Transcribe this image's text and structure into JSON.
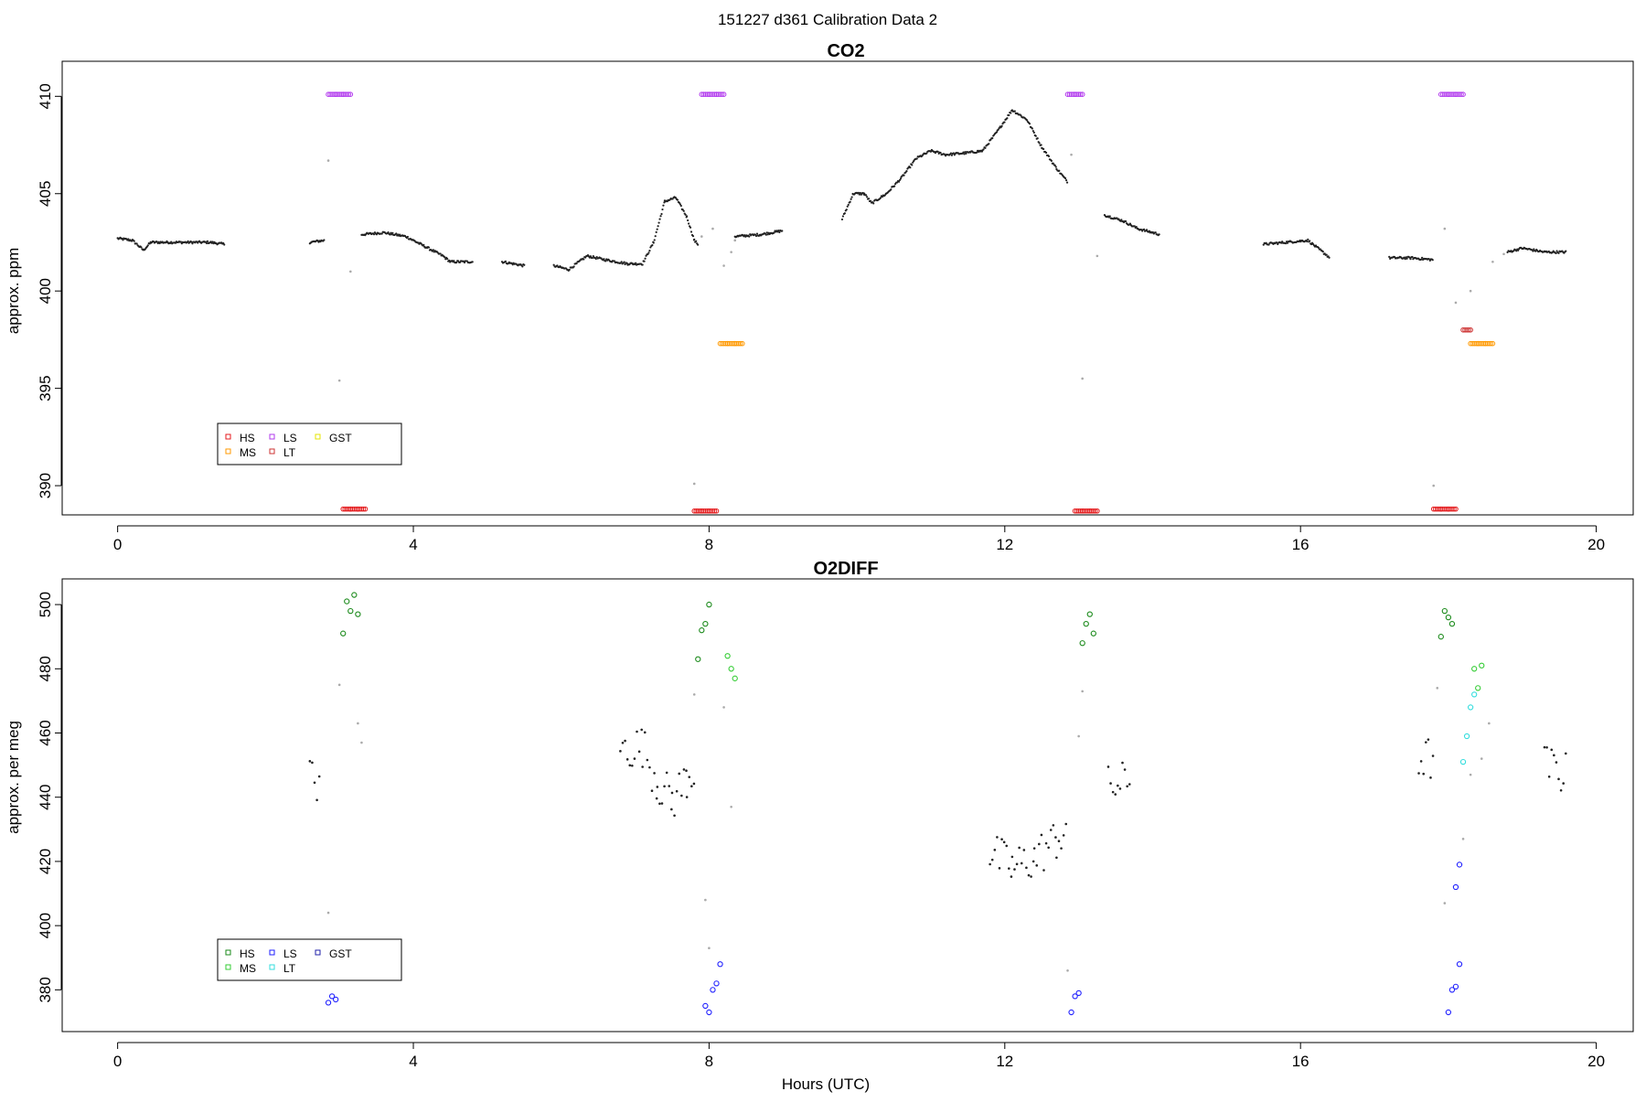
{
  "page": {
    "title": "151227   d361   Calibration Data 2"
  },
  "chart_data": [
    {
      "type": "scatter",
      "title": "CO2",
      "xlabel": "",
      "ylabel": "approx. ppm",
      "xlim": [
        -0.75,
        20.5
      ],
      "ylim": [
        388.5,
        411.8
      ],
      "x_ticks": [
        0,
        4,
        8,
        12,
        16,
        20
      ],
      "y_ticks": [
        390,
        395,
        400,
        405,
        410
      ],
      "legend": {
        "placement": "bottom-left",
        "entries": [
          {
            "label": "HS",
            "color": "#e41a1c"
          },
          {
            "label": "MS",
            "color": "#ff9900"
          },
          {
            "label": "LS",
            "color": "#b23aee"
          },
          {
            "label": "LT",
            "color": "#cd3333"
          },
          {
            "label": "GST",
            "color": "#e6e600"
          }
        ]
      },
      "ambient_trace": {
        "name": "",
        "color": "#222222",
        "points": [
          [
            0.0,
            402.7
          ],
          [
            0.2,
            402.6
          ],
          [
            0.35,
            402.1
          ],
          [
            0.45,
            402.5
          ],
          [
            0.7,
            402.5
          ],
          [
            1.0,
            402.5
          ],
          [
            1.25,
            402.5
          ],
          [
            1.45,
            402.4
          ],
          [
            1.8,
            402.4
          ],
          [
            2.2,
            402.4
          ],
          [
            2.6,
            402.5
          ],
          [
            2.8,
            402.6
          ],
          [
            3.3,
            402.9
          ],
          [
            3.6,
            403.0
          ],
          [
            3.9,
            402.8
          ],
          [
            4.15,
            402.3
          ],
          [
            4.4,
            401.8
          ],
          [
            4.5,
            401.5
          ],
          [
            4.8,
            401.5
          ],
          [
            5.2,
            401.5
          ],
          [
            5.5,
            401.3
          ],
          [
            5.9,
            401.3
          ],
          [
            6.1,
            401.1
          ],
          [
            6.35,
            401.8
          ],
          [
            6.6,
            401.6
          ],
          [
            6.9,
            401.4
          ],
          [
            7.1,
            401.4
          ],
          [
            7.25,
            402.5
          ],
          [
            7.4,
            404.6
          ],
          [
            7.55,
            404.8
          ],
          [
            7.7,
            403.8
          ],
          [
            7.8,
            402.6
          ],
          [
            7.85,
            402.4
          ],
          [
            8.35,
            402.8
          ],
          [
            8.7,
            402.9
          ],
          [
            9.0,
            403.1
          ],
          [
            9.4,
            403.3
          ],
          [
            9.8,
            403.7
          ],
          [
            9.95,
            405.0
          ],
          [
            10.1,
            405.0
          ],
          [
            10.2,
            404.5
          ],
          [
            10.4,
            405.0
          ],
          [
            10.6,
            405.8
          ],
          [
            10.8,
            406.8
          ],
          [
            11.0,
            407.2
          ],
          [
            11.2,
            407.0
          ],
          [
            11.5,
            407.1
          ],
          [
            11.7,
            407.2
          ],
          [
            11.9,
            408.2
          ],
          [
            12.1,
            409.3
          ],
          [
            12.3,
            408.8
          ],
          [
            12.5,
            407.4
          ],
          [
            12.7,
            406.3
          ],
          [
            12.85,
            405.6
          ],
          [
            13.35,
            403.9
          ],
          [
            13.6,
            403.6
          ],
          [
            13.8,
            403.2
          ],
          [
            14.1,
            402.9
          ],
          [
            14.5,
            402.7
          ],
          [
            15.0,
            402.5
          ],
          [
            15.5,
            402.4
          ],
          [
            15.8,
            402.5
          ],
          [
            16.1,
            402.6
          ],
          [
            16.4,
            401.7
          ],
          [
            16.8,
            401.7
          ],
          [
            17.2,
            401.7
          ],
          [
            17.5,
            401.7
          ],
          [
            17.8,
            401.6
          ],
          [
            18.8,
            402.0
          ],
          [
            19.0,
            402.2
          ],
          [
            19.3,
            402.0
          ],
          [
            19.6,
            402.0
          ]
        ]
      },
      "calibration_series": [
        {
          "name": "LS",
          "color": "#b23aee",
          "points": [
            [
              2.9,
              410.1
            ],
            [
              3.0,
              410.1
            ],
            [
              3.1,
              410.1
            ],
            [
              7.95,
              410.1
            ],
            [
              8.05,
              410.1
            ],
            [
              8.15,
              410.1
            ],
            [
              12.9,
              410.1
            ],
            [
              13.0,
              410.1
            ],
            [
              17.95,
              410.1
            ],
            [
              18.05,
              410.1
            ],
            [
              18.15,
              410.1
            ]
          ]
        },
        {
          "name": "HS",
          "color": "#e41a1c",
          "points": [
            [
              3.1,
              388.8
            ],
            [
              3.2,
              388.8
            ],
            [
              3.3,
              388.8
            ],
            [
              7.85,
              388.7
            ],
            [
              7.95,
              388.7
            ],
            [
              8.05,
              388.7
            ],
            [
              13.0,
              388.7
            ],
            [
              13.1,
              388.7
            ],
            [
              13.2,
              388.7
            ],
            [
              17.85,
              388.8
            ],
            [
              17.95,
              388.8
            ],
            [
              18.05,
              388.8
            ]
          ]
        },
        {
          "name": "MS",
          "color": "#ff9900",
          "points": [
            [
              8.2,
              397.3
            ],
            [
              8.3,
              397.3
            ],
            [
              8.4,
              397.3
            ],
            [
              18.35,
              397.3
            ],
            [
              18.45,
              397.3
            ],
            [
              18.55,
              397.3
            ]
          ]
        },
        {
          "name": "LT",
          "color": "#cd3333",
          "points": [
            [
              18.25,
              398.0
            ]
          ]
        }
      ],
      "transition_points": [
        [
          2.85,
          406.7
        ],
        [
          3.0,
          395.4
        ],
        [
          3.15,
          401.0
        ],
        [
          7.8,
          390.1
        ],
        [
          7.9,
          402.8
        ],
        [
          8.05,
          403.2
        ],
        [
          8.2,
          401.3
        ],
        [
          8.3,
          402.0
        ],
        [
          8.35,
          402.6
        ],
        [
          12.9,
          407.0
        ],
        [
          13.05,
          395.5
        ],
        [
          13.25,
          401.8
        ],
        [
          17.8,
          390.0
        ],
        [
          17.95,
          403.2
        ],
        [
          18.1,
          399.4
        ],
        [
          18.3,
          400.0
        ],
        [
          18.6,
          401.5
        ],
        [
          18.75,
          401.9
        ]
      ]
    },
    {
      "type": "scatter",
      "title": "O2DIFF",
      "xlabel": "Hours (UTC)",
      "ylabel": "approx. per meg",
      "xlim": [
        -0.75,
        20.5
      ],
      "ylim": [
        367,
        508
      ],
      "x_ticks": [
        0,
        4,
        8,
        12,
        16,
        20
      ],
      "y_ticks": [
        380,
        400,
        420,
        440,
        460,
        480,
        500
      ],
      "legend": {
        "placement": "bottom-left",
        "entries": [
          {
            "label": "HS",
            "color": "#1a8a1a"
          },
          {
            "label": "MS",
            "color": "#33cc33"
          },
          {
            "label": "LS",
            "color": "#1f1fff"
          },
          {
            "label": "LT",
            "color": "#33dddd"
          },
          {
            "label": "GST",
            "color": "#2222aa"
          }
        ]
      },
      "ambient_trace": {
        "name": "",
        "color": "#222222",
        "spread": 5,
        "points": [
          [
            0.0,
            449
          ],
          [
            0.5,
            448
          ],
          [
            1.0,
            449
          ],
          [
            1.4,
            451
          ],
          [
            1.8,
            450
          ],
          [
            2.2,
            453
          ],
          [
            2.6,
            450
          ],
          [
            2.75,
            440
          ],
          [
            3.4,
            448
          ],
          [
            3.8,
            448
          ],
          [
            4.2,
            450
          ],
          [
            4.8,
            454
          ],
          [
            5.3,
            456
          ],
          [
            5.8,
            454
          ],
          [
            6.3,
            453
          ],
          [
            6.8,
            455
          ],
          [
            7.1,
            456
          ],
          [
            7.3,
            445
          ],
          [
            7.5,
            439
          ],
          [
            7.7,
            446
          ],
          [
            7.8,
            448
          ],
          [
            8.5,
            444
          ],
          [
            8.9,
            444
          ],
          [
            9.4,
            446
          ],
          [
            9.8,
            440
          ],
          [
            10.2,
            437
          ],
          [
            10.6,
            433
          ],
          [
            11.0,
            429
          ],
          [
            11.4,
            425
          ],
          [
            11.8,
            423
          ],
          [
            12.1,
            418
          ],
          [
            12.4,
            421
          ],
          [
            12.7,
            427
          ],
          [
            12.85,
            430
          ],
          [
            13.4,
            443
          ],
          [
            13.7,
            445
          ],
          [
            14.1,
            447
          ],
          [
            14.6,
            451
          ],
          [
            15.2,
            452
          ],
          [
            15.8,
            452
          ],
          [
            16.4,
            453
          ],
          [
            17.0,
            452
          ],
          [
            17.6,
            452
          ],
          [
            17.8,
            452
          ],
          [
            18.9,
            450
          ],
          [
            19.3,
            450
          ],
          [
            19.6,
            447
          ]
        ]
      },
      "calibration_series": [
        {
          "name": "HS",
          "color": "#1a8a1a",
          "points": [
            [
              3.05,
              491
            ],
            [
              3.1,
              501
            ],
            [
              3.15,
              498
            ],
            [
              3.2,
              503
            ],
            [
              3.25,
              497
            ],
            [
              7.85,
              483
            ],
            [
              7.9,
              492
            ],
            [
              7.95,
              494
            ],
            [
              8.0,
              500
            ],
            [
              13.05,
              488
            ],
            [
              13.1,
              494
            ],
            [
              13.15,
              497
            ],
            [
              13.2,
              491
            ],
            [
              17.9,
              490
            ],
            [
              17.95,
              498
            ],
            [
              18.0,
              496
            ],
            [
              18.05,
              494
            ]
          ]
        },
        {
          "name": "MS",
          "color": "#33cc33",
          "points": [
            [
              8.25,
              484
            ],
            [
              8.3,
              480
            ],
            [
              8.35,
              477
            ],
            [
              18.35,
              480
            ],
            [
              18.4,
              474
            ],
            [
              18.45,
              481
            ]
          ]
        },
        {
          "name": "LS",
          "color": "#1f1fff",
          "points": [
            [
              2.85,
              376
            ],
            [
              2.9,
              378
            ],
            [
              2.95,
              377
            ],
            [
              7.95,
              375
            ],
            [
              8.0,
              373
            ],
            [
              8.05,
              380
            ],
            [
              8.1,
              382
            ],
            [
              8.15,
              388
            ],
            [
              12.9,
              373
            ],
            [
              12.95,
              378
            ],
            [
              13.0,
              379
            ],
            [
              18.0,
              373
            ],
            [
              18.05,
              380
            ],
            [
              18.1,
              381
            ],
            [
              18.15,
              388
            ],
            [
              18.1,
              412
            ],
            [
              18.15,
              419
            ]
          ]
        },
        {
          "name": "LT",
          "color": "#33dddd",
          "points": [
            [
              18.2,
              451
            ],
            [
              18.25,
              459
            ],
            [
              18.3,
              468
            ],
            [
              18.35,
              472
            ]
          ]
        }
      ],
      "transition_points": [
        [
          2.85,
          404
        ],
        [
          3.0,
          475
        ],
        [
          3.25,
          463
        ],
        [
          3.3,
          457
        ],
        [
          7.8,
          472
        ],
        [
          7.95,
          408
        ],
        [
          8.0,
          393
        ],
        [
          8.2,
          468
        ],
        [
          8.3,
          437
        ],
        [
          12.85,
          386
        ],
        [
          13.0,
          459
        ],
        [
          13.05,
          473
        ],
        [
          17.85,
          474
        ],
        [
          17.95,
          407
        ],
        [
          18.2,
          427
        ],
        [
          18.3,
          447
        ],
        [
          18.45,
          452
        ],
        [
          18.55,
          463
        ]
      ]
    }
  ]
}
